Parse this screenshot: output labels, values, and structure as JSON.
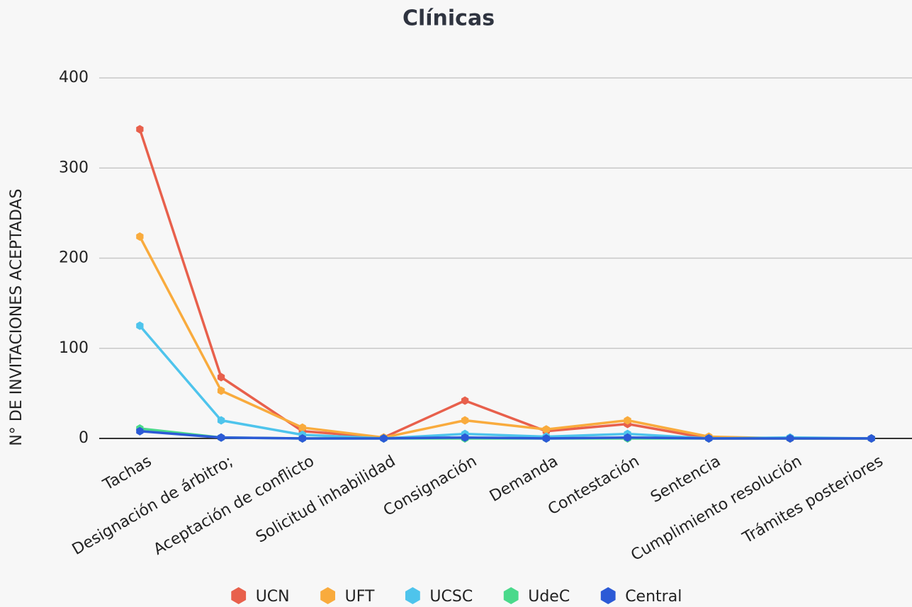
{
  "chart_data": {
    "type": "line",
    "title": "Clínicas",
    "y_label": "N° DE INVITACIONES ACEPTADAS",
    "categories": [
      "Tachas",
      "Designación de árbitro;",
      "Aceptación de conflicto",
      "Solicitud inhabilidad",
      "Consignación",
      "Demanda",
      "Contestación",
      "Sentencia",
      "Cumplimiento resolución",
      "Trámites posteriores"
    ],
    "series": [
      {
        "name": "UCN",
        "color": "#e8604c",
        "values": [
          343,
          68,
          8,
          1,
          42,
          8,
          16,
          0,
          0,
          0
        ]
      },
      {
        "name": "UFT",
        "color": "#f9ab3d",
        "values": [
          224,
          53,
          12,
          1,
          20,
          10,
          20,
          2,
          0,
          0
        ]
      },
      {
        "name": "UCSC",
        "color": "#4ec4ec",
        "values": [
          125,
          20,
          4,
          0,
          5,
          2,
          5,
          0,
          1,
          0
        ]
      },
      {
        "name": "UdeC",
        "color": "#4ad98b",
        "values": [
          11,
          1,
          0,
          0,
          0,
          0,
          0,
          0,
          0,
          0
        ]
      },
      {
        "name": "Central",
        "color": "#2c5ad6",
        "values": [
          8,
          1,
          0,
          0,
          1,
          0,
          1,
          0,
          0,
          0
        ]
      }
    ],
    "ylim": [
      0,
      400
    ],
    "yticks": [
      0,
      100,
      200,
      300,
      400
    ],
    "grid": true,
    "legend": "bottom"
  }
}
